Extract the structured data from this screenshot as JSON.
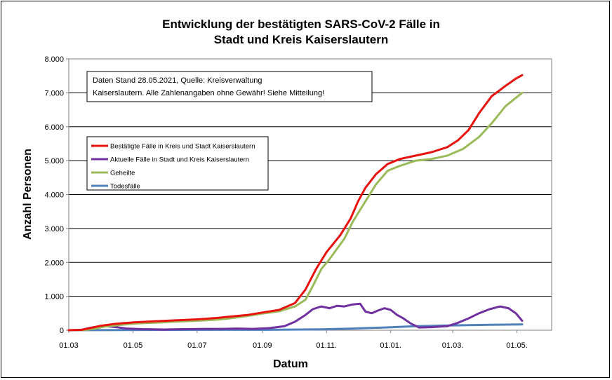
{
  "chart_data": {
    "type": "line",
    "title_lines": [
      "Entwicklung der bestätigten SARS-CoV-2 Fälle in",
      "Stadt und Kreis Kaiserslautern"
    ],
    "xlabel": "Datum",
    "ylabel": "Anzahl Personen",
    "x_ticks": [
      "01.03",
      "01.05",
      "01.07",
      "01.09",
      "01.11.",
      "01.01.",
      "01.03.",
      "01.05."
    ],
    "x_range_days": [
      0,
      459
    ],
    "y_ticks": [
      "0",
      "1.000",
      "2.000",
      "3.000",
      "4.000",
      "5.000",
      "6.000",
      "7.000",
      "8.000"
    ],
    "ylim": [
      0,
      8000
    ],
    "grid": "horizontal",
    "legend_position": "upper-left",
    "note_lines": [
      "Daten Stand 28.05.2021, Quelle: Kreisverwaltung",
      "Kaiserslautern. Alle Zahlenangaben ohne Gewähr! Siehe Mitteilung!"
    ],
    "series": [
      {
        "name": "Bestätigte Fälle in Kreis und Stadt Kaiserslautern",
        "color": "#e8120f",
        "points": [
          [
            0,
            0
          ],
          [
            12,
            10
          ],
          [
            20,
            60
          ],
          [
            30,
            130
          ],
          [
            45,
            190
          ],
          [
            61,
            230
          ],
          [
            80,
            260
          ],
          [
            100,
            290
          ],
          [
            122,
            320
          ],
          [
            140,
            360
          ],
          [
            153,
            400
          ],
          [
            170,
            450
          ],
          [
            184,
            520
          ],
          [
            200,
            600
          ],
          [
            215,
            800
          ],
          [
            225,
            1200
          ],
          [
            235,
            1800
          ],
          [
            245,
            2300
          ],
          [
            258,
            2800
          ],
          [
            268,
            3300
          ],
          [
            275,
            3800
          ],
          [
            282,
            4200
          ],
          [
            292,
            4600
          ],
          [
            303,
            4900
          ],
          [
            315,
            5050
          ],
          [
            330,
            5150
          ],
          [
            345,
            5250
          ],
          [
            360,
            5400
          ],
          [
            370,
            5600
          ],
          [
            380,
            5900
          ],
          [
            390,
            6400
          ],
          [
            402,
            6900
          ],
          [
            415,
            7200
          ],
          [
            425,
            7420
          ],
          [
            431,
            7520
          ]
        ]
      },
      {
        "name": "Aktuelle Fälle in Stadt und Kreis Kaiserslautern",
        "color": "#7030a0",
        "points": [
          [
            0,
            0
          ],
          [
            12,
            10
          ],
          [
            20,
            70
          ],
          [
            28,
            110
          ],
          [
            35,
            120
          ],
          [
            45,
            90
          ],
          [
            55,
            50
          ],
          [
            70,
            30
          ],
          [
            90,
            20
          ],
          [
            110,
            30
          ],
          [
            130,
            40
          ],
          [
            145,
            40
          ],
          [
            160,
            50
          ],
          [
            175,
            40
          ],
          [
            190,
            60
          ],
          [
            205,
            120
          ],
          [
            215,
            250
          ],
          [
            225,
            450
          ],
          [
            232,
            620
          ],
          [
            240,
            700
          ],
          [
            248,
            650
          ],
          [
            255,
            720
          ],
          [
            262,
            700
          ],
          [
            270,
            760
          ],
          [
            277,
            780
          ],
          [
            282,
            550
          ],
          [
            288,
            500
          ],
          [
            294,
            580
          ],
          [
            300,
            650
          ],
          [
            306,
            600
          ],
          [
            312,
            450
          ],
          [
            318,
            350
          ],
          [
            325,
            200
          ],
          [
            333,
            80
          ],
          [
            345,
            90
          ],
          [
            360,
            120
          ],
          [
            370,
            220
          ],
          [
            380,
            350
          ],
          [
            390,
            500
          ],
          [
            400,
            620
          ],
          [
            410,
            700
          ],
          [
            418,
            650
          ],
          [
            425,
            500
          ],
          [
            431,
            280
          ]
        ]
      },
      {
        "name": "Geheilte",
        "color": "#9bbb59",
        "points": [
          [
            0,
            0
          ],
          [
            15,
            5
          ],
          [
            25,
            50
          ],
          [
            35,
            110
          ],
          [
            50,
            160
          ],
          [
            65,
            200
          ],
          [
            80,
            220
          ],
          [
            100,
            250
          ],
          [
            122,
            280
          ],
          [
            140,
            310
          ],
          [
            153,
            350
          ],
          [
            170,
            420
          ],
          [
            184,
            490
          ],
          [
            200,
            560
          ],
          [
            215,
            700
          ],
          [
            225,
            900
          ],
          [
            232,
            1300
          ],
          [
            240,
            1800
          ],
          [
            248,
            2100
          ],
          [
            255,
            2400
          ],
          [
            262,
            2700
          ],
          [
            270,
            3200
          ],
          [
            280,
            3700
          ],
          [
            292,
            4300
          ],
          [
            303,
            4700
          ],
          [
            315,
            4850
          ],
          [
            330,
            5000
          ],
          [
            345,
            5050
          ],
          [
            360,
            5150
          ],
          [
            375,
            5350
          ],
          [
            390,
            5700
          ],
          [
            402,
            6100
          ],
          [
            415,
            6600
          ],
          [
            425,
            6850
          ],
          [
            431,
            7000
          ]
        ]
      },
      {
        "name": "Todesfälle",
        "color": "#4f81bd",
        "points": [
          [
            0,
            0
          ],
          [
            50,
            5
          ],
          [
            100,
            10
          ],
          [
            150,
            12
          ],
          [
            200,
            15
          ],
          [
            240,
            25
          ],
          [
            270,
            50
          ],
          [
            300,
            80
          ],
          [
            330,
            120
          ],
          [
            360,
            140
          ],
          [
            400,
            160
          ],
          [
            431,
            170
          ]
        ]
      }
    ]
  }
}
